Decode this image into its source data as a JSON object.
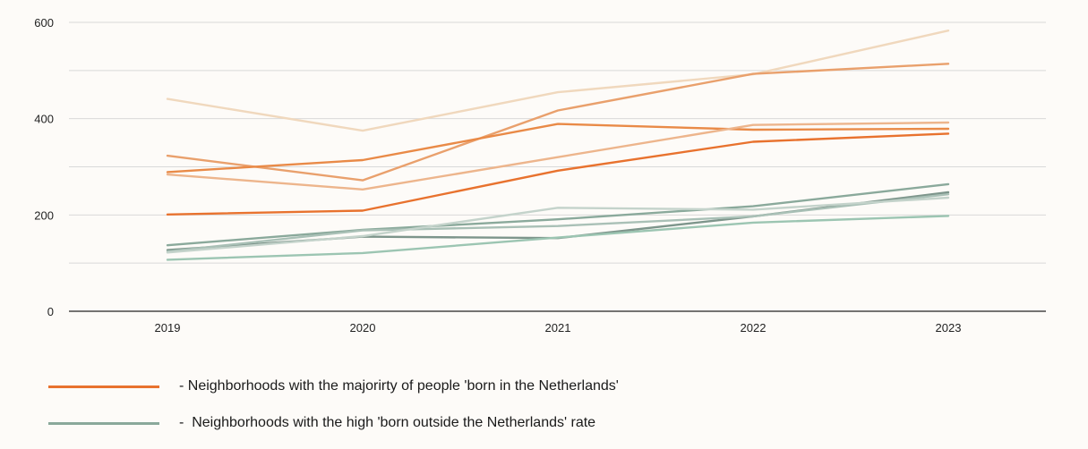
{
  "chart_data": {
    "type": "line",
    "x": [
      "2019",
      "2020",
      "2021",
      "2022",
      "2023"
    ],
    "ylim": [
      0,
      600
    ],
    "yticks": [
      0,
      200,
      400,
      600
    ],
    "ygrid_step": 100,
    "grid": true,
    "series": [
      {
        "group": "orange",
        "color": "#f0d8bd",
        "values": [
          441,
          375,
          455,
          492,
          583
        ]
      },
      {
        "group": "orange",
        "color": "#e9a06c",
        "values": [
          323,
          272,
          417,
          493,
          514
        ]
      },
      {
        "group": "orange",
        "color": "#e98a47",
        "values": [
          289,
          314,
          389,
          377,
          379
        ]
      },
      {
        "group": "orange",
        "color": "#edb58c",
        "values": [
          284,
          253,
          320,
          387,
          392
        ]
      },
      {
        "group": "orange",
        "color": "#e8722e",
        "values": [
          201,
          209,
          292,
          352,
          369
        ]
      },
      {
        "group": "green",
        "color": "#8aa99b",
        "values": [
          137,
          169,
          191,
          218,
          264
        ]
      },
      {
        "group": "green",
        "color": "#7d958b",
        "values": [
          127,
          155,
          152,
          197,
          247
        ]
      },
      {
        "group": "green",
        "color": "#a9c0b6",
        "values": [
          124,
          168,
          177,
          197,
          243
        ]
      },
      {
        "group": "green",
        "color": "#c4d3cb",
        "values": [
          122,
          156,
          215,
          211,
          236
        ]
      },
      {
        "group": "green",
        "color": "#9cc5b2",
        "values": [
          107,
          121,
          153,
          184,
          198
        ]
      }
    ]
  },
  "legend": {
    "items": [
      {
        "label": "- Neighborhoods with the majorirty of people 'born in the Netherlands'",
        "color": "#e8722e"
      },
      {
        "label": "-  Neighborhoods with the high 'born outside the Netherlands' rate",
        "color": "#8aa99b"
      }
    ]
  }
}
